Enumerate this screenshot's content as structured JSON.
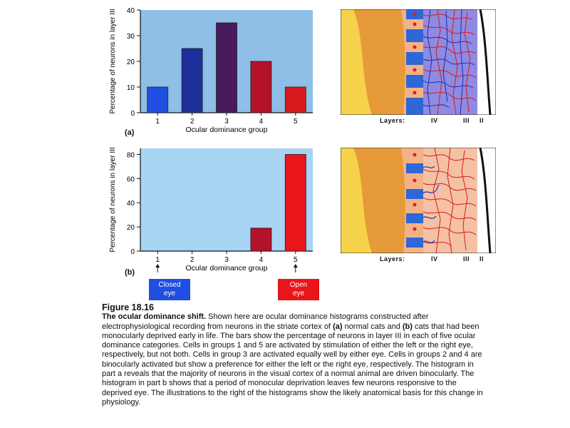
{
  "chart_data": [
    {
      "type": "bar",
      "panel": "(a)",
      "categories": [
        "1",
        "2",
        "3",
        "4",
        "5"
      ],
      "values": [
        10,
        25,
        35,
        20,
        10
      ],
      "bar_colors": [
        "#1f4ee0",
        "#1d2f9b",
        "#4a1a5e",
        "#b3122a",
        "#d81a1a"
      ],
      "xlabel": "Ocular dominance group",
      "ylabel": "Percentage of neurons in layer III",
      "ylim": [
        0,
        40
      ],
      "yticks": [
        0,
        10,
        20,
        30,
        40
      ],
      "background": "#8fbfe6",
      "grid": false
    },
    {
      "type": "bar",
      "panel": "(b)",
      "categories": [
        "1",
        "2",
        "3",
        "4",
        "5"
      ],
      "values": [
        0,
        0,
        0,
        19,
        80
      ],
      "bar_colors": [
        "#1f4ee0",
        "#1d2f9b",
        "#4a1a5e",
        "#b3122a",
        "#e8161a"
      ],
      "xlabel": "Ocular dominance group",
      "ylabel": "Percentage of neurons in layer III",
      "ylim": [
        0,
        85
      ],
      "yticks": [
        0,
        20,
        40,
        60,
        80
      ],
      "background": "#a9d4f3",
      "grid": false
    }
  ],
  "illustrations": {
    "layers_label": "Layers:",
    "layer_names": [
      "IV",
      "III",
      "II"
    ]
  },
  "eye_labels": {
    "closed": [
      "Closed",
      "eye"
    ],
    "open": [
      "Open",
      "eye"
    ],
    "closed_color": "#1f4ee0",
    "open_color": "#e8161a"
  },
  "caption": {
    "figure_number": "Figure 18.16",
    "title": "The ocular dominance shift.",
    "body_1": " Shown here are ocular dominance histograms constructed after electrophysiological recording from neurons in the striate cortex of ",
    "a_marker": "(a)",
    "body_2": " normal cats and ",
    "b_marker": "(b)",
    "body_3": " cats that had been monocularly deprived early in life. The bars show the percentage of neurons in layer III in each of five ocular dominance categories. Cells in groups 1 and 5 are activated by stimulation of either the left or the right eye, respectively, but not both. Cells in group 3 are activated equally well by either eye. Cells in groups 2 and 4 are binocularly activated but show a preference for either the left or the right eye, respectively. The histogram in part a reveals that the majority of neurons in the visual cortex of a normal animal are driven binocularly. The histogram in part b shows that a period of monocular deprivation leaves few neurons responsive to the deprived eye. The illustrations to the right of the histograms show the likely anatomical basis for this change in physiology."
  }
}
